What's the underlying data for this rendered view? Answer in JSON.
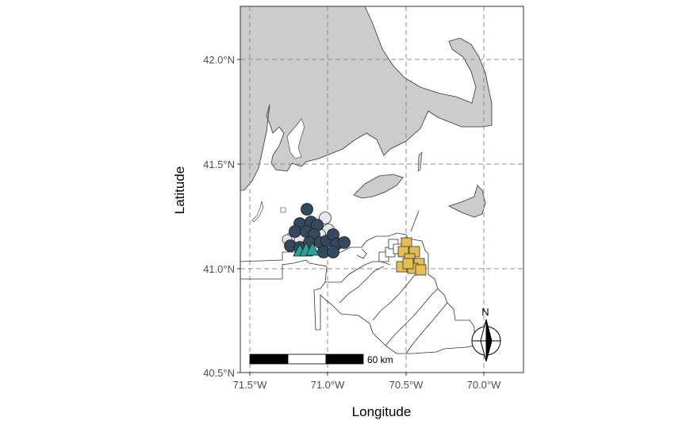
{
  "map": {
    "x_axis_title": "Longitude",
    "y_axis_title": "Latitude",
    "x_ticks": [
      "71.5°W",
      "71.0°W",
      "70.5°W",
      "70.0°W"
    ],
    "y_ticks": [
      "42.0°N",
      "41.5°N",
      "41.0°N",
      "40.5°N"
    ],
    "scale_bar_label": "60 km",
    "north_arrow_label": "N",
    "colors": {
      "land": "#cccccc",
      "land_outline": "#333333",
      "grid": "#8c8c8c",
      "lease_outline": "#333333",
      "circle_dark": "#34495e",
      "circle_light": "#e8e8e8",
      "triangle": "#2aa198",
      "square": "#e6bd52"
    },
    "icons": {
      "north_arrow": "north-arrow-icon"
    }
  }
}
